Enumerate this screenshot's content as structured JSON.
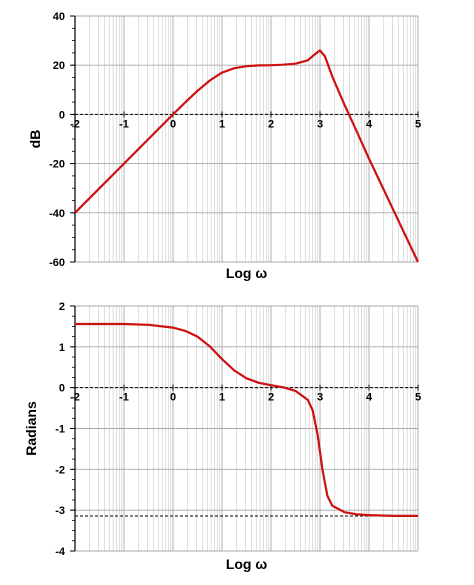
{
  "colors": {
    "curve": "#cc1111",
    "grid": "#c8c8c8",
    "axis": "#000000",
    "background": "#ffffff"
  },
  "chart_data": [
    {
      "type": "line",
      "title": "",
      "xlabel": "Log ω",
      "ylabel": "dB",
      "xlim": [
        -2,
        5
      ],
      "ylim": [
        -60,
        40
      ],
      "x_scale": "log10 (axis labelled in log ω)",
      "grid": true,
      "x_ticks": [
        -2,
        -1,
        0,
        1,
        2,
        3,
        4,
        5
      ],
      "x_tick_labels": [
        "-2",
        "-1",
        "0",
        "1",
        "2",
        "3",
        "4",
        "5"
      ],
      "y_ticks": [
        -60,
        -40,
        -20,
        0,
        20,
        40
      ],
      "y_tick_labels": [
        "-60",
        "-40",
        "-20",
        "0",
        "20",
        "40"
      ],
      "reference_line": {
        "y": 0,
        "style": "dashed"
      },
      "series": [
        {
          "x": [
            -2,
            -1.5,
            -1,
            -0.5,
            0,
            0.25,
            0.5,
            0.75,
            1,
            1.25,
            1.5,
            1.75,
            2,
            2.25,
            2.5,
            2.75,
            2.9,
            3,
            3.1,
            3.25,
            3.5,
            3.75,
            4,
            4.5,
            5
          ],
          "y": [
            -40,
            -30,
            -20,
            -10,
            0,
            4.9,
            9.6,
            13.8,
            17,
            18.8,
            19.6,
            19.9,
            20,
            20.2,
            20.6,
            22,
            24.5,
            26,
            23.6,
            15.4,
            3.9,
            -7,
            -18,
            -39,
            -60
          ]
        }
      ]
    },
    {
      "type": "line",
      "title": "",
      "xlabel": "Log ω",
      "ylabel": "Radians",
      "xlim": [
        -2,
        5
      ],
      "ylim": [
        -4,
        2
      ],
      "x_scale": "log10 (axis labelled in log ω)",
      "grid": true,
      "x_ticks": [
        -2,
        -1,
        0,
        1,
        2,
        3,
        4,
        5
      ],
      "x_tick_labels": [
        "-2",
        "-1",
        "0",
        "1",
        "2",
        "3",
        "4",
        "5"
      ],
      "y_ticks": [
        -4,
        -3,
        -2,
        -1,
        0,
        1,
        2
      ],
      "y_tick_labels": [
        "-4",
        "-3",
        "-2",
        "-1",
        "0",
        "1",
        "2"
      ],
      "reference_lines": [
        {
          "y": 0,
          "style": "dashed"
        },
        {
          "y": -3.14159,
          "style": "dashed"
        }
      ],
      "series": [
        {
          "x": [
            -2,
            -1.5,
            -1,
            -0.5,
            0,
            0.25,
            0.5,
            0.75,
            1,
            1.25,
            1.5,
            1.75,
            2,
            2.25,
            2.5,
            2.75,
            2.85,
            2.95,
            3,
            3.05,
            3.15,
            3.25,
            3.5,
            3.75,
            4,
            4.5,
            5
          ],
          "y": [
            1.56,
            1.56,
            1.56,
            1.54,
            1.47,
            1.39,
            1.25,
            1.01,
            0.7,
            0.42,
            0.23,
            0.12,
            0.06,
            0.01,
            -0.08,
            -0.3,
            -0.55,
            -1.15,
            -1.57,
            -2.0,
            -2.65,
            -2.89,
            -3.05,
            -3.1,
            -3.12,
            -3.14,
            -3.14
          ]
        }
      ]
    }
  ]
}
